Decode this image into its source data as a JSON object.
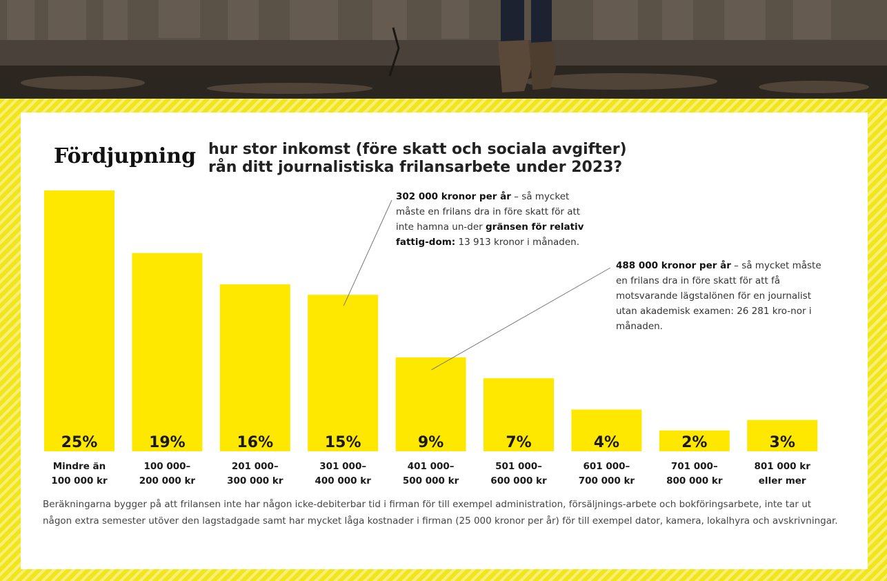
{
  "badge": "Fördjupning",
  "question": {
    "line1": "hur stor inkomst (före skatt och sociala avgifter)",
    "line2": "rån ditt journalistiska frilansarbete under 2023?"
  },
  "annotations": [
    {
      "bold1": "302 000 kronor per år",
      "text1": " – så mycket måste en frilans dra in före skatt för att inte hamna un-der ",
      "bold2": "gränsen för relativ fattig-dom:",
      "text2": " 13 913 kronor i månaden."
    },
    {
      "bold1": "488 000 kronor per år",
      "text1": " – så mycket måste en frilans dra in före skatt för att få motsvarande lägstalönen för en journalist utan akademisk examen: 26 281 kro-nor i månaden.",
      "bold2": "",
      "text2": ""
    }
  ],
  "footnote": "Beräkningarna bygger på att frilansen inte har någon icke-debiterbar tid i firman för till exempel administration, försäljnings-arbete och bokföringsarbete, inte tar ut någon extra semester utöver den lagstadgade samt har mycket låga kostnader i firman (25 000 kronor per år) för till exempel dator, kamera, lokalhyra och avskrivningar.",
  "colors": {
    "bar": "#ffe800",
    "frame": "#f2e51a"
  },
  "chart_data": {
    "type": "bar",
    "categories": [
      [
        "Mindre än",
        "100 000 kr"
      ],
      [
        "100 000–",
        "200 000 kr"
      ],
      [
        "201 000–",
        "300 000 kr"
      ],
      [
        "301 000–",
        "400 000 kr"
      ],
      [
        "401 000–",
        "500 000 kr"
      ],
      [
        "501 000–",
        "600 000 kr"
      ],
      [
        "601 000–",
        "700 000 kr"
      ],
      [
        "701 000–",
        "800 000 kr"
      ],
      [
        "801 000 kr",
        "eller mer"
      ]
    ],
    "values": [
      25,
      19,
      16,
      15,
      9,
      7,
      4,
      2,
      3
    ],
    "value_labels": [
      "25%",
      "19%",
      "16%",
      "15%",
      "9%",
      "7%",
      "4%",
      "2%",
      "3%"
    ],
    "unit": "%",
    "ylim": [
      0,
      25
    ],
    "grid": false,
    "legend": "none"
  }
}
